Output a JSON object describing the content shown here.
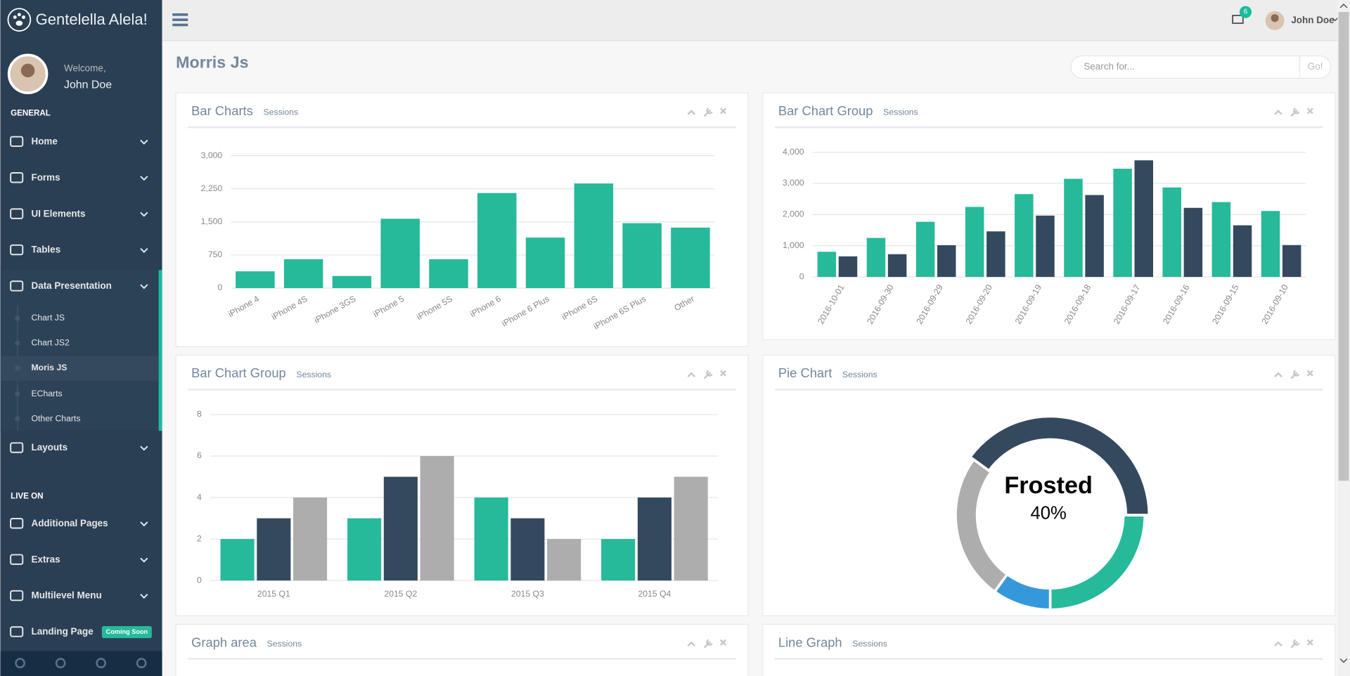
{
  "sidebar": {
    "brand": "Gentelella Alela!",
    "welcome": "Welcome,",
    "user": "John Doe",
    "sections": [
      {
        "title": "GENERAL",
        "items": [
          {
            "label": "Home"
          },
          {
            "label": "Forms"
          },
          {
            "label": "UI Elements"
          },
          {
            "label": "Tables"
          },
          {
            "label": "Data Presentation",
            "children": [
              "Chart JS",
              "Chart JS2",
              "Moris JS",
              "ECharts",
              "Other Charts"
            ]
          },
          {
            "label": "Layouts"
          }
        ]
      },
      {
        "title": "LIVE ON",
        "items": [
          {
            "label": "Additional Pages"
          },
          {
            "label": "Extras"
          },
          {
            "label": "Multilevel Menu"
          },
          {
            "label": "Landing Page",
            "badge": "Coming Soon"
          }
        ]
      }
    ]
  },
  "topbar": {
    "notifications": 6,
    "user": "John Doe"
  },
  "page_title": "Morris Js",
  "search": {
    "placeholder": "Search for...",
    "button": "Go!"
  },
  "panels": [
    {
      "title": "Bar Charts",
      "subtitle": "Sessions",
      "chart_data": {
        "type": "bar",
        "categories": [
          "iPhone 4",
          "iPhone 4S",
          "iPhone 3GS",
          "iPhone 5",
          "iPhone 5S",
          "iPhone 6",
          "iPhone 6 Plus",
          "iPhone 6S",
          "iPhone 6S Plus",
          "Other"
        ],
        "values": [
          380,
          655,
          275,
          1571,
          655,
          2154,
          1144,
          2371,
          1471,
          1371
        ],
        "color": "#26B99A",
        "ylim": [
          0,
          3000
        ],
        "yticks": [
          0,
          750,
          {
            "value": 1500,
            "label": "1,500"
          },
          {
            "value": 2250,
            "label": "2,250"
          },
          {
            "value": 3000,
            "label": "3,000"
          }
        ],
        "grid": true
      }
    },
    {
      "title": "Bar Chart Group",
      "subtitle": "Sessions",
      "chart_data": {
        "type": "bar",
        "categories": [
          "2016-10-01",
          "2016-09-30",
          "2016-09-29",
          "2016-09-20",
          "2016-09-19",
          "2016-09-18",
          "2016-09-17",
          "2016-09-16",
          "2016-09-15",
          "2016-09-10"
        ],
        "series": [
          {
            "color": "#26B99A",
            "values": [
              807,
              1251,
              1769,
              2246,
              2657,
              3148,
              3471,
              2871,
              2401,
              2115
            ]
          },
          {
            "color": "#34495E",
            "values": [
              660,
              729,
              1018,
              1461,
              1967,
              2627,
              3740,
              2216,
              1656,
              1022
            ]
          }
        ],
        "ylim": [
          0,
          4000
        ],
        "yticks": [
          0,
          {
            "value": 1000,
            "label": "1,000"
          },
          {
            "value": 2000,
            "label": "2,000"
          },
          {
            "value": 3000,
            "label": "3,000"
          },
          {
            "value": 4000,
            "label": "4,000"
          }
        ],
        "grid": true
      }
    },
    {
      "title": "Bar Chart Group",
      "subtitle": "Sessions",
      "chart_data": {
        "type": "bar",
        "categories": [
          "2015 Q1",
          "2015 Q2",
          "2015 Q3",
          "2015 Q4"
        ],
        "series": [
          {
            "color": "#26B99A",
            "values": [
              2,
              3,
              4,
              2
            ]
          },
          {
            "color": "#34495E",
            "values": [
              3,
              5,
              3,
              4
            ]
          },
          {
            "color": "#ACADAC",
            "values": [
              4,
              6,
              2,
              5
            ]
          }
        ],
        "ylim": [
          0,
          8
        ],
        "yticks": [
          0,
          2,
          4,
          6,
          8
        ],
        "grid": true
      }
    },
    {
      "title": "Pie Chart",
      "subtitle": "Sessions",
      "chart_data": {
        "type": "donut",
        "categories": [
          "Frosted",
          null,
          null,
          null
        ],
        "values": [
          40,
          25,
          10,
          25
        ],
        "value_labels": [
          "40%",
          null,
          null,
          null
        ],
        "colors": [
          "#34495E",
          "#26B99A",
          "#3498DB",
          "#ACADAC"
        ]
      }
    },
    {
      "title": "Graph area",
      "subtitle": "Sessions"
    },
    {
      "title": "Line Graph",
      "subtitle": "Sessions"
    }
  ]
}
